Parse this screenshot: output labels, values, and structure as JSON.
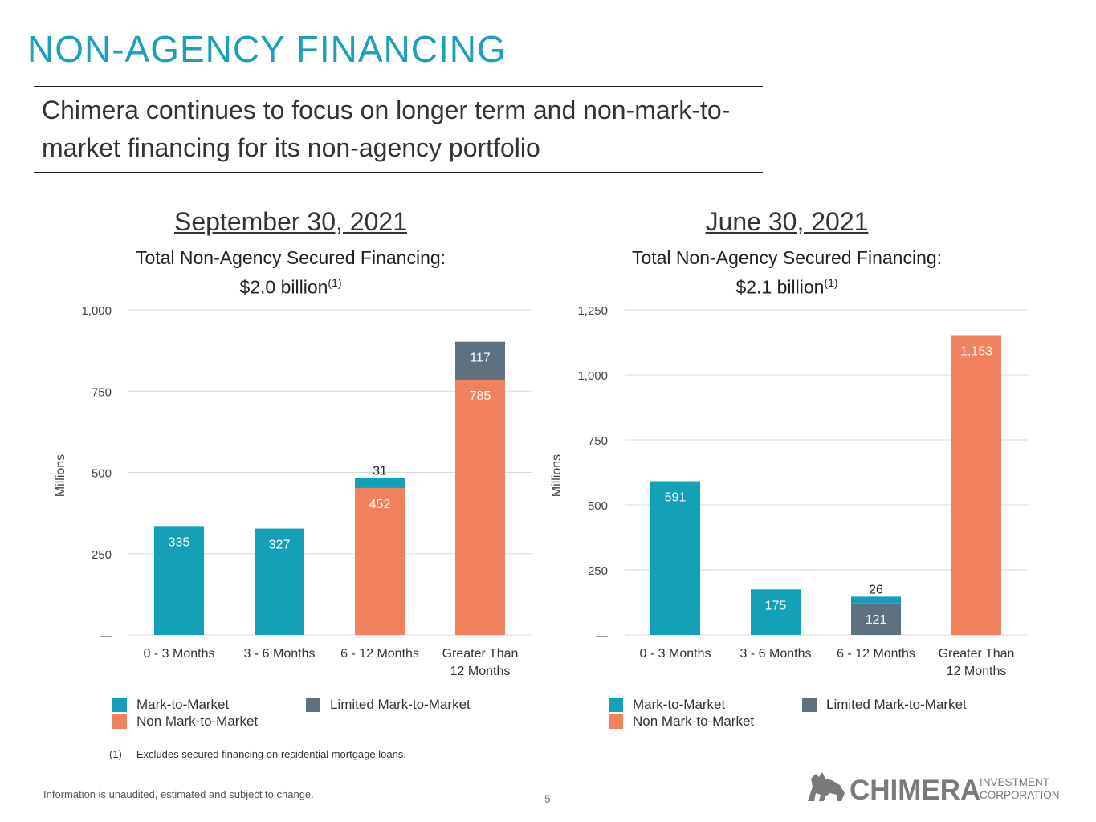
{
  "title": "NON-AGENCY FINANCING",
  "subtitle": "Chimera continues to focus on longer term and non-mark-to-market financing for its non-agency portfolio",
  "colors": {
    "mark_to_market": "#13a0b8",
    "non_mark_to_market": "#f2825e",
    "limited_mark_to_market": "#5d717e",
    "title": "#1aa0b8"
  },
  "charts": [
    {
      "date": "September 30, 2021",
      "subtitle_line1": "Total Non-Agency Secured Financing:",
      "subtitle_line2": "$2.0 billion",
      "footnote_ref": "(1)",
      "legend": {
        "mark_to_market": "Mark-to-Market",
        "limited_mark_to_market": "Limited Mark-to-Market",
        "non_mark_to_market": "Non Mark-to-Market"
      }
    },
    {
      "date": "June 30, 2021",
      "subtitle_line1": "Total Non-Agency Secured Financing:",
      "subtitle_line2": "$2.1 billion",
      "footnote_ref": "(1)",
      "legend": {
        "mark_to_market": "Mark-to-Market",
        "limited_mark_to_market": "Limited Mark-to-Market",
        "non_mark_to_market": "Non Mark-to-Market"
      }
    }
  ],
  "chart_data": [
    {
      "type": "bar",
      "stacked": true,
      "categories": [
        "0 - 3 Months",
        "3 - 6 Months",
        "6 - 12 Months",
        "Greater Than 12 Months"
      ],
      "series": [
        {
          "name": "Mark-to-Market",
          "key": "mark_to_market",
          "values": [
            335,
            327,
            31,
            0
          ],
          "labels": [
            "335",
            "327",
            "31",
            ""
          ]
        },
        {
          "name": "Non Mark-to-Market",
          "key": "non_mark_to_market",
          "values": [
            0,
            0,
            452,
            785
          ],
          "labels": [
            "",
            "",
            "452",
            "785"
          ]
        },
        {
          "name": "Limited Mark-to-Market",
          "key": "limited_mark_to_market",
          "values": [
            0,
            0,
            0,
            117
          ],
          "labels": [
            "",
            "",
            "",
            "117"
          ]
        }
      ],
      "stack_order": [
        "mark_to_market",
        "non_mark_to_market",
        "limited_mark_to_market"
      ],
      "stack_order_by_category": [
        [
          "mark_to_market"
        ],
        [
          "mark_to_market"
        ],
        [
          "non_mark_to_market",
          "mark_to_market"
        ],
        [
          "non_mark_to_market",
          "limited_mark_to_market"
        ]
      ],
      "ylabel": "Millions",
      "ylim": [
        0,
        1000
      ],
      "yticks": [
        0,
        250,
        500,
        750,
        1000
      ],
      "ytick_labels": [
        "—",
        "250",
        "500",
        "750",
        "1,000"
      ],
      "grid": true,
      "legend_position": "bottom"
    },
    {
      "type": "bar",
      "stacked": true,
      "categories": [
        "0 - 3 Months",
        "3 - 6 Months",
        "6 - 12 Months",
        "Greater Than 12 Months"
      ],
      "series": [
        {
          "name": "Mark-to-Market",
          "key": "mark_to_market",
          "values": [
            591,
            175,
            26,
            0
          ],
          "labels": [
            "591",
            "175",
            "26",
            ""
          ]
        },
        {
          "name": "Non Mark-to-Market",
          "key": "non_mark_to_market",
          "values": [
            0,
            0,
            0,
            1153
          ],
          "labels": [
            "",
            "",
            "",
            "1,153"
          ]
        },
        {
          "name": "Limited Mark-to-Market",
          "key": "limited_mark_to_market",
          "values": [
            0,
            0,
            121,
            0
          ],
          "labels": [
            "",
            "",
            "121",
            ""
          ]
        }
      ],
      "stack_order_by_category": [
        [
          "mark_to_market"
        ],
        [
          "mark_to_market"
        ],
        [
          "limited_mark_to_market",
          "mark_to_market"
        ],
        [
          "non_mark_to_market"
        ]
      ],
      "ylabel": "Millions",
      "ylim": [
        0,
        1250
      ],
      "yticks": [
        0,
        250,
        500,
        750,
        1000,
        1250
      ],
      "ytick_labels": [
        "—",
        "250",
        "500",
        "750",
        "1,000",
        "1,250"
      ],
      "grid": true,
      "legend_position": "bottom"
    }
  ],
  "footnote": {
    "number": "(1)",
    "text": "Excludes secured financing on residential mortgage loans."
  },
  "disclaimer": "Information is unaudited, estimated and subject to change.",
  "page_number": "5",
  "logo": {
    "name": "CHIMERA",
    "tagline_line1": "INVESTMENT",
    "tagline_line2": "CORPORATION",
    "icon": "chimera-creature-icon"
  }
}
